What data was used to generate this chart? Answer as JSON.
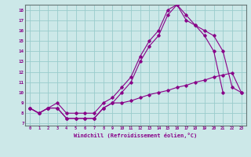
{
  "title": "",
  "xlabel": "Windchill (Refroidissement éolien,°C)",
  "bg_color": "#cce8e8",
  "grid_color": "#99cccc",
  "line_color": "#880088",
  "border_color": "#667777",
  "xlim": [
    -0.5,
    23.5
  ],
  "ylim": [
    6.8,
    18.5
  ],
  "xticks": [
    0,
    1,
    2,
    3,
    4,
    5,
    6,
    7,
    8,
    9,
    10,
    11,
    12,
    13,
    14,
    15,
    16,
    17,
    18,
    19,
    20,
    21,
    22,
    23
  ],
  "yticks": [
    7,
    8,
    9,
    10,
    11,
    12,
    13,
    14,
    15,
    16,
    17,
    18
  ],
  "line1_x": [
    0,
    1,
    2,
    3,
    4,
    5,
    6,
    7,
    8,
    9,
    10,
    11,
    12,
    13,
    14,
    15,
    16,
    17,
    18,
    19,
    20,
    21
  ],
  "line1_y": [
    8.5,
    8.0,
    8.5,
    8.5,
    7.5,
    7.5,
    7.5,
    7.5,
    8.5,
    9.0,
    10.0,
    11.0,
    13.0,
    14.5,
    15.5,
    17.5,
    18.5,
    17.0,
    16.5,
    15.5,
    14.0,
    10.0
  ],
  "line2_x": [
    0,
    1,
    2,
    3,
    4,
    5,
    6,
    7,
    8,
    9,
    10,
    11,
    12,
    13,
    14,
    15,
    16,
    17,
    18,
    19,
    20,
    21,
    22,
    23
  ],
  "line2_y": [
    8.5,
    8.0,
    8.5,
    8.5,
    7.5,
    7.5,
    7.5,
    7.5,
    8.5,
    9.0,
    9.0,
    9.2,
    9.5,
    9.8,
    10.0,
    10.2,
    10.5,
    10.7,
    11.0,
    11.2,
    11.5,
    11.7,
    11.9,
    10.0
  ],
  "line3_x": [
    0,
    1,
    2,
    3,
    4,
    5,
    6,
    7,
    8,
    9,
    10,
    11,
    12,
    13,
    14,
    15,
    16,
    17,
    18,
    19,
    20,
    21,
    22,
    23
  ],
  "line3_y": [
    8.5,
    8.0,
    8.5,
    9.0,
    8.0,
    8.0,
    8.0,
    8.0,
    9.0,
    9.5,
    10.5,
    11.5,
    13.5,
    15.0,
    16.0,
    18.0,
    18.5,
    17.5,
    16.5,
    16.0,
    15.5,
    14.0,
    10.5,
    10.0
  ]
}
